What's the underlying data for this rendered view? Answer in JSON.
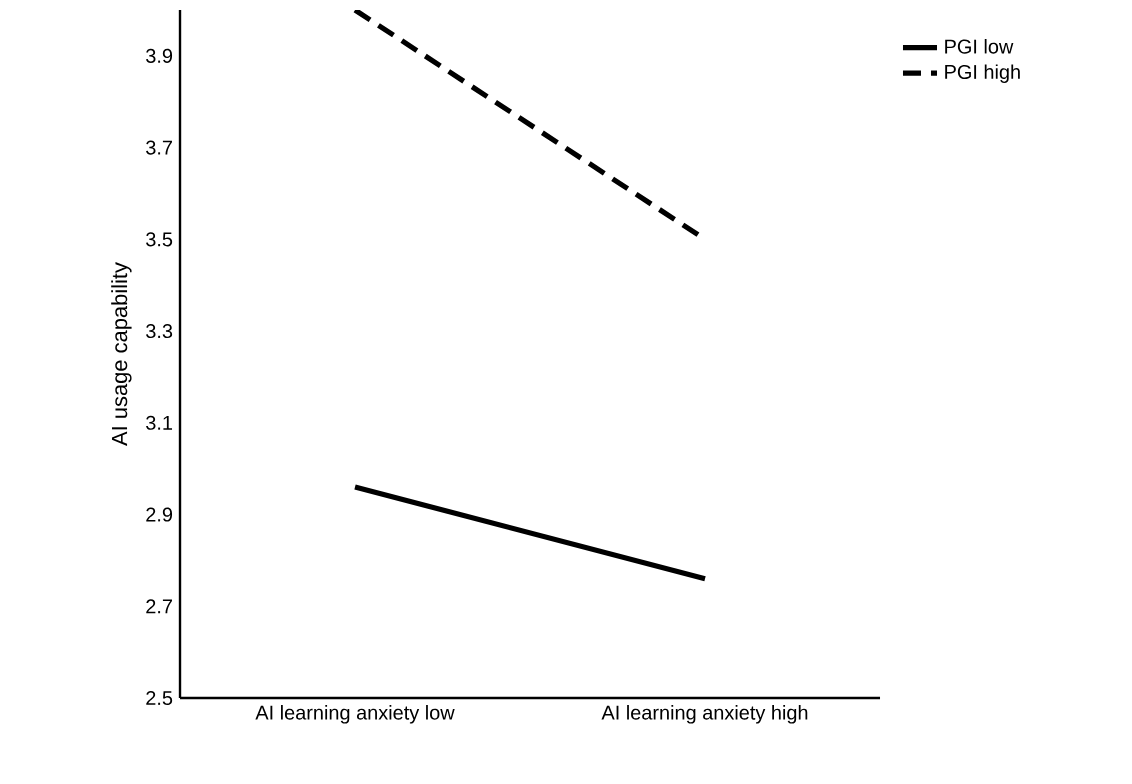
{
  "chart_data": {
    "type": "line",
    "ylabel": "AI usage capability",
    "categories": [
      "AI learning anxiety low",
      "AI learning anxiety high"
    ],
    "series": [
      {
        "name": "PGI low",
        "color": "#000000",
        "values": [
          2.96,
          2.76
        ],
        "line_style": "solid"
      },
      {
        "name": "PGI high",
        "color": "#000000",
        "values": [
          4.0,
          3.5
        ],
        "line_style": "dashed"
      }
    ],
    "ylim": [
      2.5,
      4.0
    ],
    "yticks": [
      2.5,
      2.7,
      2.9,
      3.1,
      3.3,
      3.5,
      3.7,
      3.9
    ],
    "grid": false,
    "legend": "top right",
    "marker": "none"
  }
}
